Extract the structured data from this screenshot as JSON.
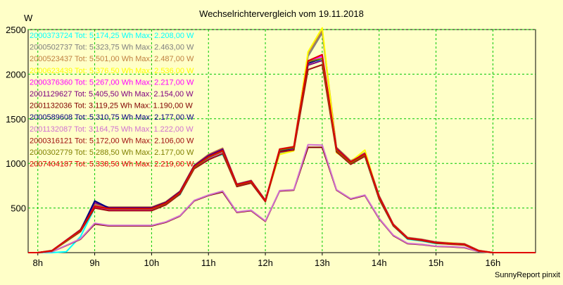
{
  "chart_data": {
    "type": "line",
    "title": "Wechselrichtervergleich vom 19.11.2018",
    "ylabel": "W",
    "xlabel": "",
    "footer": "SunnyReport pinxit",
    "xlim": [
      7.83,
      16.75
    ],
    "ylim": [
      0,
      2500
    ],
    "yticks": [
      500,
      1000,
      1500,
      2000,
      2500
    ],
    "xticks": [
      {
        "value": 8,
        "label": "8h"
      },
      {
        "value": 9,
        "label": "9h"
      },
      {
        "value": 10,
        "label": "10h"
      },
      {
        "value": 11,
        "label": "11h"
      },
      {
        "value": 12,
        "label": "12h"
      },
      {
        "value": 13,
        "label": "13h"
      },
      {
        "value": 14,
        "label": "14h"
      },
      {
        "value": 15,
        "label": "15h"
      },
      {
        "value": 16,
        "label": "16h"
      }
    ],
    "grid": true,
    "legend_position": "top-left",
    "x": [
      7.83,
      8.0,
      8.25,
      8.5,
      8.75,
      9.0,
      9.25,
      9.5,
      9.75,
      10.0,
      10.25,
      10.5,
      10.75,
      11.0,
      11.25,
      11.5,
      11.75,
      12.0,
      12.25,
      12.5,
      12.75,
      13.0,
      13.25,
      13.5,
      13.75,
      14.0,
      14.25,
      14.5,
      14.75,
      15.0,
      15.25,
      15.5,
      15.75,
      16.0,
      16.25,
      16.5,
      16.75
    ],
    "series": [
      {
        "name": "2000373724 Tot: 5.174,25 Wh Max: 2.208,00 W",
        "color": "#00ffff",
        "values": [
          0,
          0,
          0,
          10,
          180,
          500,
          480,
          480,
          480,
          480,
          550,
          650,
          950,
          1050,
          1100,
          760,
          800,
          580,
          1150,
          1180,
          2150,
          2150,
          1150,
          1000,
          1080,
          600,
          300,
          150,
          130,
          100,
          100,
          90,
          20,
          0,
          0,
          0,
          0
        ]
      },
      {
        "name": "2000502737 Tot: 5.323,75 Wh Max: 2.463,00 W",
        "color": "#808080",
        "values": [
          0,
          0,
          20,
          130,
          240,
          530,
          500,
          500,
          500,
          500,
          560,
          680,
          970,
          1080,
          1150,
          750,
          790,
          580,
          1120,
          1150,
          2200,
          2463,
          1150,
          1010,
          1100,
          620,
          300,
          160,
          140,
          110,
          100,
          90,
          20,
          0,
          0,
          0,
          0
        ]
      },
      {
        "name": "2000523437 Tot: 5.501,00 Wh Max: 2.487,00 W",
        "color": "#c08040",
        "values": [
          0,
          0,
          25,
          140,
          260,
          540,
          510,
          510,
          510,
          510,
          570,
          690,
          980,
          1100,
          1170,
          770,
          810,
          590,
          1160,
          1190,
          2230,
          2487,
          1180,
          1030,
          1120,
          640,
          320,
          170,
          150,
          120,
          110,
          100,
          25,
          0,
          0,
          0,
          0
        ]
      },
      {
        "name": "2000623439 Tot: 5.376,50 Wh Max: 2.536,00 W",
        "color": "#ffff00",
        "values": [
          0,
          0,
          20,
          135,
          250,
          520,
          490,
          490,
          490,
          490,
          555,
          675,
          960,
          1070,
          1140,
          760,
          800,
          580,
          1100,
          1140,
          2250,
          2520,
          1120,
          1020,
          1150,
          620,
          310,
          165,
          145,
          115,
          110,
          95,
          20,
          0,
          0,
          0,
          0
        ]
      },
      {
        "name": "2000376360 Tot: 5.267,00 Wh Max: 2.217,00 W",
        "color": "#ff00ff",
        "values": [
          0,
          0,
          20,
          130,
          240,
          510,
          480,
          480,
          480,
          480,
          545,
          665,
          950,
          1060,
          1130,
          755,
          795,
          575,
          1130,
          1160,
          2150,
          2200,
          1140,
          1000,
          1090,
          610,
          305,
          160,
          140,
          110,
          100,
          90,
          20,
          0,
          0,
          0,
          0
        ]
      },
      {
        "name": "2001129627 Tot: 5.405,50 Wh Max: 2.154,00 W",
        "color": "#800080",
        "values": [
          0,
          0,
          22,
          140,
          255,
          560,
          505,
          505,
          505,
          505,
          565,
          685,
          975,
          1090,
          1160,
          765,
          805,
          585,
          1150,
          1180,
          2100,
          2154,
          1170,
          1020,
          1110,
          630,
          315,
          165,
          145,
          115,
          105,
          95,
          22,
          0,
          0,
          0,
          0
        ]
      },
      {
        "name": "2001132036 Tot: 3.119,25 Wh Max: 1.190,00 W",
        "color": "#800000",
        "values": [
          0,
          0,
          10,
          80,
          150,
          320,
          300,
          300,
          300,
          300,
          340,
          410,
          580,
          640,
          680,
          450,
          470,
          350,
          690,
          700,
          1180,
          1180,
          700,
          600,
          640,
          380,
          190,
          100,
          90,
          70,
          65,
          55,
          12,
          0,
          0,
          0,
          0
        ]
      },
      {
        "name": "2000589608 Tot: 5.310,75 Wh Max: 2.177,00 W",
        "color": "#000080",
        "values": [
          0,
          0,
          20,
          135,
          250,
          580,
          500,
          500,
          500,
          500,
          560,
          680,
          970,
          1080,
          1150,
          760,
          800,
          580,
          1140,
          1170,
          2120,
          2177,
          1160,
          1010,
          1100,
          620,
          310,
          160,
          140,
          110,
          100,
          90,
          20,
          0,
          0,
          0,
          0
        ]
      },
      {
        "name": "2001132087 Tot: 3.164,75 Wh Max: 1.222,00 W",
        "color": "#d070d0",
        "values": [
          0,
          0,
          10,
          82,
          155,
          330,
          305,
          305,
          305,
          305,
          345,
          415,
          585,
          645,
          690,
          455,
          475,
          355,
          695,
          705,
          1210,
          1205,
          705,
          605,
          645,
          385,
          195,
          105,
          92,
          72,
          68,
          58,
          12,
          0,
          0,
          0,
          0
        ]
      },
      {
        "name": "2000316121 Tot: 5.172,00 Wh Max: 2.106,00 W",
        "color": "#a01010",
        "values": [
          0,
          0,
          18,
          125,
          235,
          500,
          470,
          470,
          470,
          470,
          535,
          655,
          940,
          1040,
          1110,
          740,
          780,
          570,
          1130,
          1150,
          2050,
          2106,
          1130,
          990,
          1080,
          600,
          300,
          155,
          135,
          105,
          95,
          85,
          18,
          0,
          0,
          0,
          0
        ]
      },
      {
        "name": "2000302779 Tot: 5.288,50 Wh Max: 2.177,00 W",
        "color": "#808000",
        "values": [
          0,
          0,
          20,
          130,
          245,
          520,
          490,
          490,
          490,
          490,
          550,
          670,
          955,
          1065,
          1135,
          755,
          795,
          578,
          1150,
          1175,
          2140,
          2177,
          1150,
          1005,
          1095,
          615,
          308,
          160,
          140,
          110,
          100,
          90,
          20,
          0,
          0,
          0,
          0
        ]
      },
      {
        "name": "2007404187 Tot: 5.338,50 Wh Max: 2.219,00 W",
        "color": "#e00000",
        "values": [
          0,
          0,
          22,
          138,
          250,
          520,
          495,
          495,
          495,
          495,
          555,
          675,
          965,
          1075,
          1145,
          760,
          800,
          580,
          1160,
          1185,
          2150,
          2219,
          1160,
          1015,
          1105,
          625,
          312,
          162,
          142,
          112,
          102,
          92,
          21,
          0,
          0,
          0,
          0
        ]
      }
    ]
  }
}
